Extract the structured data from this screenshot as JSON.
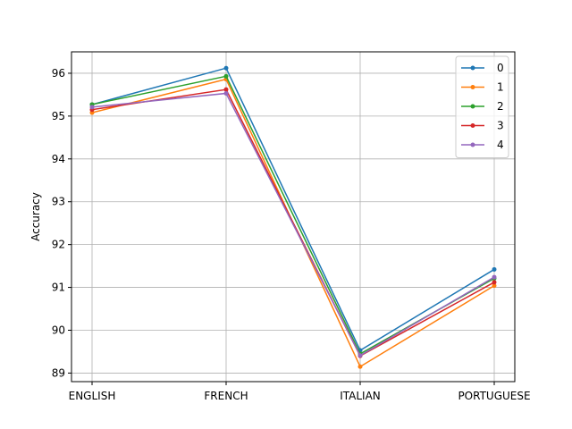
{
  "chart_data": {
    "type": "line",
    "title": "",
    "xlabel": "",
    "ylabel": "Accuracy",
    "categories": [
      "ENGLISH",
      "FRENCH",
      "ITALIAN",
      "PORTUGUESE"
    ],
    "ylim": [
      88.8,
      96.5
    ],
    "yticks": [
      89,
      90,
      91,
      92,
      93,
      94,
      95,
      96
    ],
    "grid": true,
    "legend_position": "top-right",
    "series": [
      {
        "name": "0",
        "color": "#1f77b4",
        "values": [
          95.27,
          96.12,
          89.53,
          91.42
        ]
      },
      {
        "name": "1",
        "color": "#ff7f0e",
        "values": [
          95.08,
          95.86,
          89.15,
          91.04
        ]
      },
      {
        "name": "2",
        "color": "#2ca02c",
        "values": [
          95.27,
          95.93,
          89.45,
          91.21
        ]
      },
      {
        "name": "3",
        "color": "#d62728",
        "values": [
          95.15,
          95.62,
          89.4,
          91.12
        ]
      },
      {
        "name": "4",
        "color": "#9467bd",
        "values": [
          95.21,
          95.53,
          89.41,
          91.24
        ]
      }
    ]
  }
}
